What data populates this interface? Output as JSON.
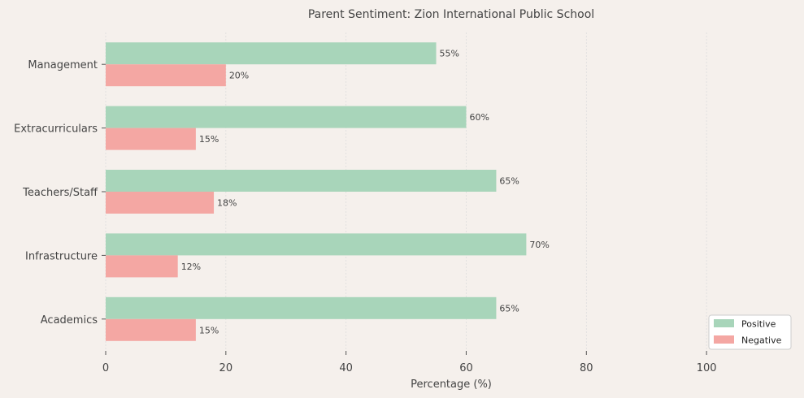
{
  "chart_data": {
    "type": "bar",
    "orientation": "horizontal",
    "title": "Parent Sentiment: Zion International Public School",
    "xlabel": "Percentage (%)",
    "ylabel": "",
    "categories": [
      "Management",
      "Extracurriculars",
      "Teachers/Staff",
      "Infrastructure",
      "Academics"
    ],
    "series": [
      {
        "name": "Positive",
        "color": "#a8d5ba",
        "values": [
          55,
          60,
          65,
          70,
          65
        ],
        "labels": [
          "55%",
          "60%",
          "65%",
          "70%",
          "65%"
        ]
      },
      {
        "name": "Negative",
        "color": "#f4a7a3",
        "values": [
          20,
          15,
          18,
          12,
          15
        ],
        "labels": [
          "20%",
          "15%",
          "18%",
          "12%",
          "15%"
        ]
      }
    ],
    "xlim": [
      0,
      115
    ],
    "xticks": [
      0,
      20,
      40,
      60,
      80,
      100
    ],
    "xtick_labels": [
      "0",
      "20",
      "40",
      "60",
      "80",
      "100"
    ],
    "grid": true,
    "legend_position": "bottom-right"
  }
}
